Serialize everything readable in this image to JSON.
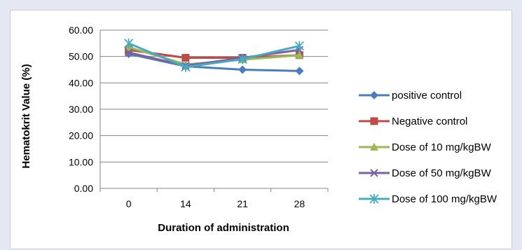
{
  "chart_data": {
    "type": "line",
    "title": "",
    "xlabel": "Duration of administration",
    "ylabel": "Hematokrit Value (%)",
    "categories": [
      "0",
      "14",
      "21",
      "28"
    ],
    "ylim": [
      0,
      60
    ],
    "yticks": [
      "0.00",
      "10.00",
      "20.00",
      "30.00",
      "40.00",
      "50.00",
      "60.00"
    ],
    "grid": true,
    "legend_position": "right",
    "series": [
      {
        "name": "positive control",
        "values": [
          51.0,
          46.3,
          45.0,
          44.5
        ],
        "color": "#4a7ebb",
        "marker": "diamond"
      },
      {
        "name": "Negative control",
        "values": [
          52.5,
          49.5,
          49.5,
          50.5
        ],
        "color": "#be4b48",
        "marker": "square"
      },
      {
        "name": "Dose of 10 mg/kgBW",
        "values": [
          53.5,
          47.0,
          48.8,
          50.5
        ],
        "color": "#98b954",
        "marker": "triangle"
      },
      {
        "name": "Dose of 50 mg/kgBW",
        "values": [
          51.5,
          46.5,
          49.5,
          52.5
        ],
        "color": "#7d60a0",
        "marker": "x"
      },
      {
        "name": "Dose of 100 mg/kgBW",
        "values": [
          55.0,
          46.0,
          49.0,
          54.0
        ],
        "color": "#46aac5",
        "marker": "star"
      }
    ]
  }
}
